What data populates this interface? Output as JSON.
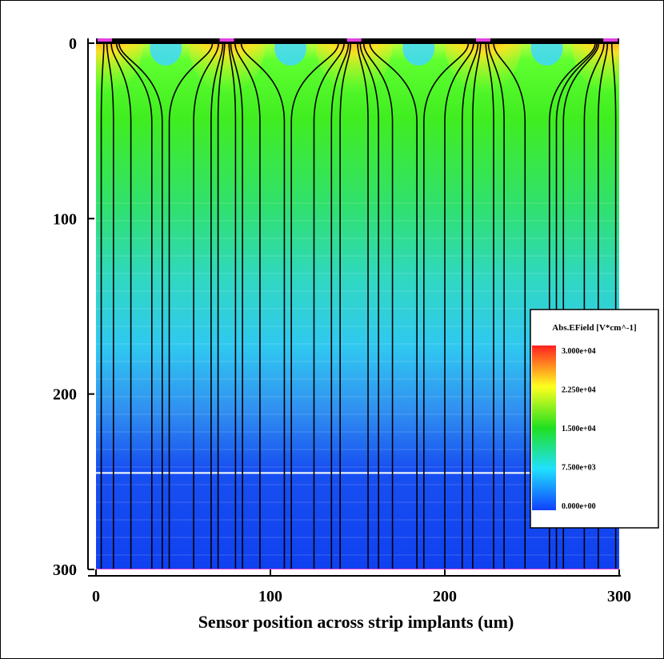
{
  "chart_data": {
    "type": "heatmap",
    "xlabel": "Sensor position across strip implants (um)",
    "ylabel": "",
    "xlim": [
      0,
      300
    ],
    "ylim": [
      0,
      300
    ],
    "y_inverted": true,
    "xticks": [
      0,
      100,
      200,
      300
    ],
    "yticks": [
      0,
      100,
      200,
      300
    ],
    "xtick_labels": [
      "0",
      "100",
      "200",
      "300"
    ],
    "ytick_labels": [
      "0",
      "100",
      "200",
      "300"
    ],
    "colorbar": {
      "title": "Abs.EField [V*cm^-1]",
      "min": 0,
      "max": 30000,
      "tick_labels": [
        "3.000e+04",
        "2.250e+04",
        "1.500e+04",
        "7.500e+03",
        "0.000e+00"
      ],
      "tick_values": [
        30000,
        22500,
        15000,
        7500,
        0
      ],
      "colors": [
        "#ff2020",
        "#ffff20",
        "#20e020",
        "#20e0ff",
        "#1040ff"
      ]
    },
    "strip_centers_um": [
      5,
      75,
      148,
      222,
      295
    ],
    "depletion_edge_um": 245,
    "field_line_x_um": [
      3,
      10,
      20,
      32,
      38,
      42,
      56,
      66,
      70,
      80,
      84,
      94,
      108,
      112,
      125,
      135,
      140,
      156,
      162,
      170,
      184,
      188,
      200,
      210,
      216,
      228,
      234,
      246,
      260,
      264,
      268,
      280,
      288,
      298
    ]
  }
}
